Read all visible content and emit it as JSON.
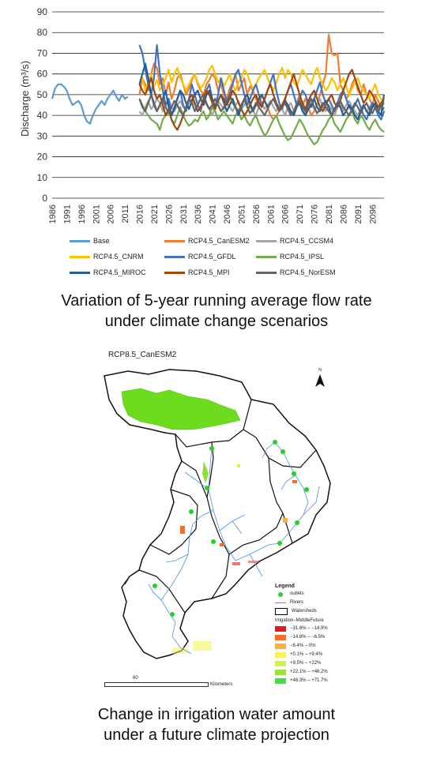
{
  "chart_data": {
    "type": "line",
    "title": "",
    "xlabel": "",
    "ylabel": "Discharge (m³/s)",
    "ylim": [
      0,
      90
    ],
    "yticks": [
      0,
      10,
      20,
      30,
      40,
      50,
      60,
      70,
      80,
      90
    ],
    "xticks": [
      1986,
      1991,
      1996,
      2001,
      2006,
      2011,
      2016,
      2021,
      2026,
      2031,
      2036,
      2041,
      2046,
      2051,
      2056,
      2061,
      2066,
      2071,
      2076,
      2081,
      2086,
      2091,
      2096
    ],
    "xlim": [
      1986,
      2100
    ],
    "grid": "horizontal",
    "legend_position": "bottom",
    "series": [
      {
        "name": "Base",
        "color": "#5b9bd5",
        "start": 1986,
        "values": [
          48,
          53,
          55,
          55,
          54,
          52,
          48,
          45,
          46,
          47,
          45,
          40,
          37,
          36,
          40,
          43,
          45,
          47,
          45,
          48,
          50,
          52,
          49,
          47,
          50,
          48,
          49
        ]
      },
      {
        "name": "RCP4.5_CanESM2",
        "color": "#ed7d31",
        "start": 2016,
        "values": [
          50,
          58,
          55,
          52,
          60,
          65,
          63,
          55,
          58,
          50,
          56,
          48,
          52,
          58,
          60,
          55,
          50,
          53,
          57,
          60,
          55,
          52,
          50,
          55,
          57,
          60,
          58,
          52,
          55,
          50,
          48,
          53,
          56,
          60,
          52,
          55,
          58,
          50,
          54,
          52,
          48,
          45,
          50,
          47,
          44,
          40,
          38,
          40,
          42,
          45,
          48,
          44,
          40,
          42,
          46,
          50,
          45,
          48,
          44,
          40,
          42,
          45,
          50,
          55,
          60,
          79,
          70,
          69,
          70,
          55,
          52,
          48,
          50,
          55,
          58,
          52,
          50,
          55,
          50,
          48,
          45,
          50,
          47,
          44,
          46
        ]
      },
      {
        "name": "RCP4.5_CCSM4",
        "color": "#a5a5a5",
        "start": 2016,
        "values": [
          42,
          40,
          44,
          47,
          43,
          45,
          48,
          46,
          42,
          45,
          48,
          44,
          42,
          45,
          47,
          44,
          43,
          46,
          48,
          45,
          42,
          44,
          47,
          45,
          43,
          40,
          44,
          47,
          45,
          43,
          46,
          44,
          42,
          45,
          47,
          43,
          45,
          48,
          44,
          42,
          40,
          44,
          46,
          43,
          45,
          47,
          44,
          42,
          45,
          43,
          40,
          44,
          46,
          42,
          45,
          47,
          43,
          41,
          44,
          46,
          43,
          45,
          48,
          44,
          42,
          45,
          43,
          40,
          44,
          46,
          42,
          45,
          47,
          44,
          42,
          40,
          43,
          45,
          42,
          44,
          46,
          43,
          41,
          44,
          42
        ]
      },
      {
        "name": "RCP4.5_CNRM",
        "color": "#ffc000",
        "start": 2016,
        "values": [
          55,
          58,
          52,
          56,
          60,
          54,
          57,
          52,
          55,
          58,
          62,
          56,
          60,
          63,
          58,
          55,
          52,
          55,
          58,
          60,
          56,
          53,
          55,
          58,
          62,
          64,
          60,
          56,
          58,
          54,
          57,
          60,
          55,
          52,
          56,
          58,
          62,
          60,
          56,
          53,
          55,
          58,
          60,
          62,
          58,
          55,
          52,
          56,
          60,
          63,
          58,
          62,
          60,
          56,
          54,
          58,
          62,
          60,
          57,
          55,
          60,
          63,
          58,
          55,
          52,
          54,
          58,
          56,
          52,
          55,
          58,
          54,
          50,
          53,
          56,
          58,
          54,
          52,
          50,
          48,
          52,
          55,
          50,
          48,
          46
        ]
      },
      {
        "name": "RCP4.5_GFDL",
        "color": "#4472c4",
        "start": 2016,
        "values": [
          74,
          70,
          62,
          55,
          50,
          58,
          74,
          60,
          52,
          45,
          48,
          40,
          44,
          48,
          52,
          45,
          42,
          48,
          55,
          50,
          45,
          42,
          48,
          52,
          55,
          48,
          44,
          50,
          58,
          52,
          46,
          50,
          55,
          60,
          62,
          56,
          50,
          45,
          48,
          52,
          55,
          50,
          45,
          48,
          52,
          56,
          60,
          52,
          46,
          43,
          48,
          52,
          55,
          50,
          45,
          48,
          52,
          50,
          46,
          44,
          48,
          52,
          56,
          50,
          46,
          48,
          45,
          42,
          46,
          50,
          52,
          48,
          44,
          42,
          45,
          48,
          44,
          40,
          38,
          42,
          46,
          44,
          40,
          38,
          42
        ]
      },
      {
        "name": "RCP4.5_IPSL",
        "color": "#70ad47",
        "start": 2016,
        "values": [
          48,
          45,
          42,
          40,
          38,
          37,
          36,
          33,
          38,
          40,
          42,
          38,
          36,
          40,
          44,
          40,
          37,
          35,
          36,
          38,
          37,
          40,
          42,
          38,
          40,
          44,
          42,
          38,
          40,
          42,
          40,
          38,
          36,
          40,
          42,
          38,
          40,
          37,
          35,
          38,
          40,
          36,
          33,
          30,
          32,
          35,
          38,
          40,
          36,
          33,
          30,
          28,
          29,
          32,
          35,
          38,
          36,
          33,
          30,
          28,
          26,
          27,
          30,
          33,
          35,
          38,
          40,
          36,
          34,
          32,
          35,
          38,
          40,
          42,
          38,
          36,
          40,
          38,
          35,
          33,
          36,
          38,
          35,
          33,
          32
        ]
      },
      {
        "name": "RCP4.5_MIROC",
        "color": "#255e91",
        "start": 2016,
        "values": [
          55,
          60,
          65,
          58,
          50,
          45,
          42,
          45,
          48,
          52,
          44,
          40,
          43,
          48,
          52,
          50,
          46,
          43,
          47,
          50,
          52,
          48,
          45,
          50,
          52,
          48,
          44,
          47,
          50,
          46,
          42,
          45,
          48,
          44,
          40,
          44,
          48,
          50,
          46,
          42,
          45,
          48,
          50,
          47,
          44,
          46,
          48,
          45,
          42,
          44,
          47,
          45,
          42,
          40,
          44,
          46,
          42,
          40,
          43,
          45,
          48,
          44,
          42,
          45,
          47,
          44,
          40,
          43,
          46,
          44,
          40,
          42,
          45,
          43,
          40,
          38,
          42,
          45,
          42,
          40,
          44,
          46,
          42,
          40,
          50
        ]
      },
      {
        "name": "RCP4.5_MPI",
        "color": "#9e480e",
        "start": 2016,
        "values": [
          55,
          52,
          50,
          54,
          58,
          52,
          48,
          50,
          45,
          40,
          43,
          38,
          35,
          33,
          36,
          40,
          44,
          48,
          50,
          46,
          42,
          44,
          48,
          52,
          50,
          46,
          43,
          47,
          50,
          48,
          45,
          48,
          52,
          50,
          46,
          43,
          40,
          42,
          45,
          48,
          50,
          46,
          44,
          48,
          52,
          55,
          50,
          46,
          43,
          45,
          48,
          52,
          56,
          60,
          55,
          50,
          46,
          43,
          47,
          50,
          52,
          48,
          44,
          42,
          45,
          48,
          50,
          46,
          44,
          47,
          52,
          56,
          60,
          62,
          58,
          54,
          50,
          46,
          48,
          52,
          50,
          47,
          44,
          46,
          48
        ]
      },
      {
        "name": "RCP4.5_NorESM",
        "color": "#636363",
        "start": 2016,
        "values": [
          48,
          44,
          42,
          46,
          50,
          46,
          42,
          45,
          48,
          44,
          41,
          44,
          47,
          45,
          42,
          40,
          44,
          48,
          46,
          42,
          45,
          48,
          50,
          46,
          43,
          45,
          48,
          45,
          42,
          44,
          47,
          50,
          46,
          44,
          42,
          45,
          48,
          44,
          41,
          43,
          46,
          44,
          42,
          40,
          43,
          46,
          48,
          45,
          42,
          44,
          46,
          43,
          40,
          42,
          45,
          47,
          44,
          42,
          45,
          48,
          44,
          41,
          43,
          46,
          44,
          42,
          40,
          43,
          45,
          47,
          44,
          42,
          40,
          43,
          46,
          44,
          41,
          44,
          46,
          43,
          41,
          44,
          42,
          45,
          43
        ]
      }
    ]
  },
  "caption1": "Variation of 5-year running average flow rate\nunder climate change scenarios",
  "map": {
    "title": "RCP8.5_CanESM2",
    "north_label": "N",
    "legend_title": "Legend",
    "legend_items": [
      {
        "label": "outlets",
        "kind": "dot",
        "color": "#33cc33"
      },
      {
        "label": "Rivers",
        "kind": "line",
        "color": "#4a90e2"
      },
      {
        "label": "Watersheds",
        "kind": "box",
        "color": "#000000"
      }
    ],
    "irrigation_title": "Irrigation–MiddleFuture",
    "classes": [
      {
        "label": "−31.6% – −14.9%",
        "color": "#e31a1c"
      },
      {
        "label": "−14.8% – −6.5%",
        "color": "#f46d2a"
      },
      {
        "label": "−6.4% – 0%",
        "color": "#fdae3b"
      },
      {
        "label": "+0.1% – +9.4%",
        "color": "#f7f056"
      },
      {
        "label": "+9.5% – +22%",
        "color": "#d4f04a"
      },
      {
        "label": "+22.1% – +46.2%",
        "color": "#9be33a"
      },
      {
        "label": "+46.3% – +71.7%",
        "color": "#3ee03a"
      }
    ],
    "scale_value": "60",
    "scale_unit": "Kilometers"
  },
  "caption2": "Change in irrigation water amount\nunder a future climate projection"
}
